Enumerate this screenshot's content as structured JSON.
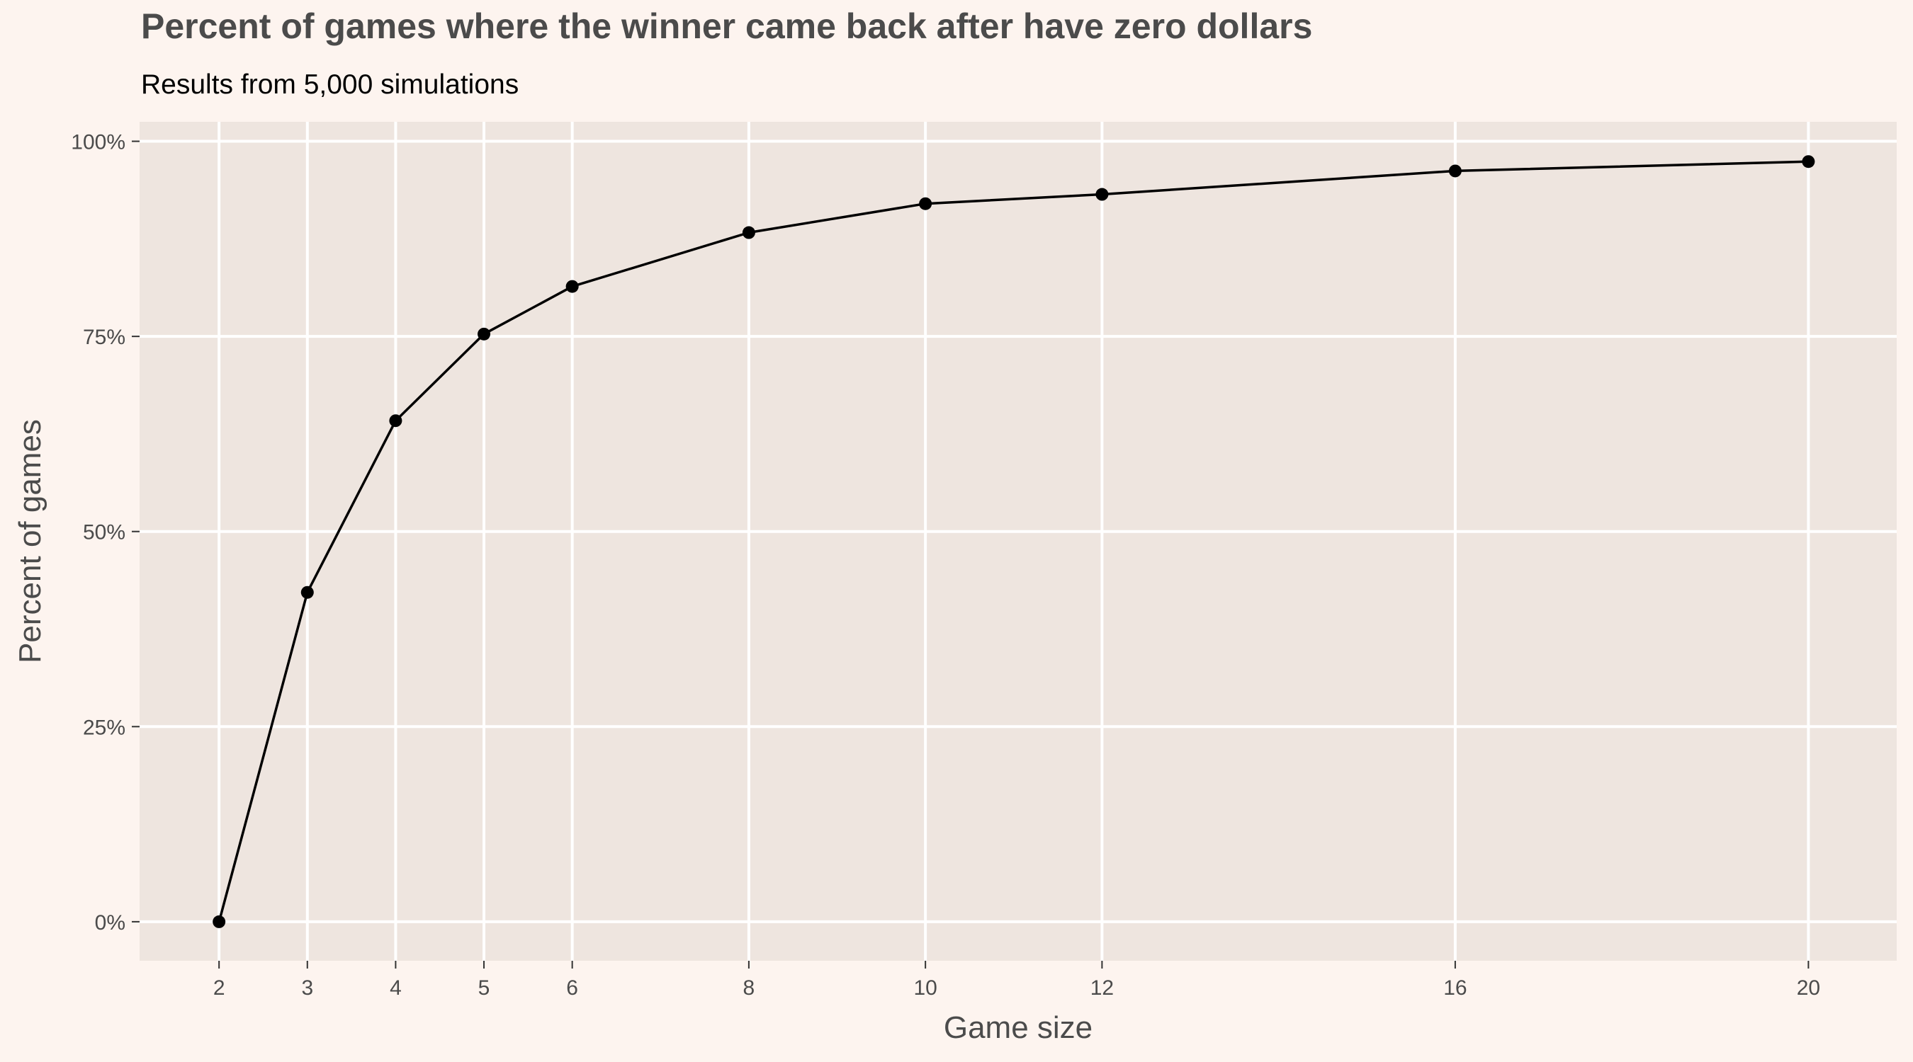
{
  "chart_data": {
    "type": "line",
    "title": "Percent of games where the winner came back after have zero dollars",
    "subtitle": "Results from 5,000 simulations",
    "xlabel": "Game size",
    "ylabel": "Percent of games",
    "x": [
      2,
      3,
      4,
      5,
      6,
      8,
      10,
      12,
      16,
      20
    ],
    "series": [
      {
        "values": [
          0,
          42.2,
          64.2,
          75.3,
          81.4,
          88.3,
          92.0,
          93.2,
          96.2,
          97.4
        ]
      }
    ],
    "x_ticks": [
      2,
      3,
      4,
      5,
      6,
      8,
      10,
      12,
      16,
      20
    ],
    "x_tick_labels": [
      "2",
      "3",
      "4",
      "5",
      "6",
      "8",
      "10",
      "12",
      "16",
      "20"
    ],
    "y_ticks": [
      0,
      25,
      50,
      75,
      100
    ],
    "y_tick_labels": [
      "0%",
      "25%",
      "50%",
      "75%",
      "100%"
    ],
    "xlim": [
      1.1,
      21.0
    ],
    "ylim": [
      -5,
      102.5
    ],
    "grid": true,
    "legend": "none",
    "colors": {
      "page_background": "#FDF4EF",
      "panel_background": "#EEE5DF",
      "grid": "#FFFFFF",
      "line": "#000000",
      "point": "#000000"
    }
  }
}
